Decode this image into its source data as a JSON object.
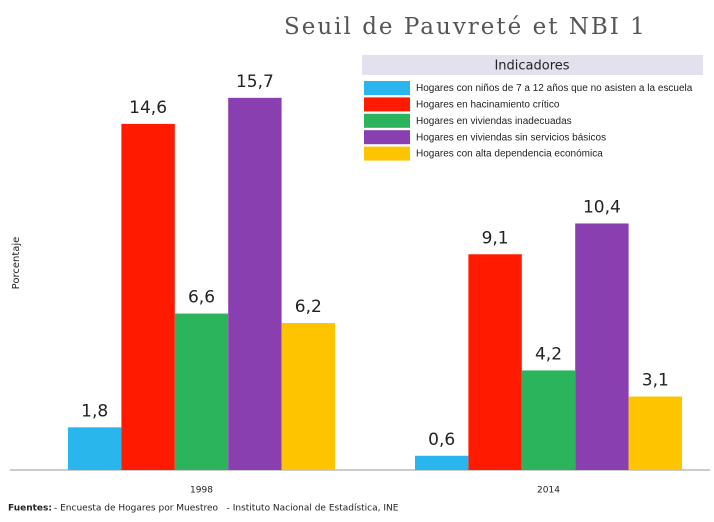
{
  "chart_data": {
    "type": "bar",
    "title": "Seuil de Pauvreté et NBI 1",
    "y_label": "Porcentaje",
    "legend_title": "Indicadores",
    "source_label": "Fuentes:",
    "source": "- Encuesta de Hogares por Muestreo   - Instituto Nacional de Estadística, INE",
    "categories": [
      "1998",
      "2014"
    ],
    "ylim": [
      0,
      17
    ],
    "series": [
      {
        "name": "Hogares con niños de 7 a 12 años que no asisten a la escuela",
        "color": "#29b6ec",
        "values": [
          1.8,
          0.6
        ],
        "value_labels": [
          "1,8",
          "0,6"
        ]
      },
      {
        "name": "Hogares en hacinamiento crítico",
        "color": "#ff1a00",
        "values": [
          14.6,
          9.1
        ],
        "value_labels": [
          "14,6",
          "9,1"
        ]
      },
      {
        "name": "Hogares en viviendas inadecuadas",
        "color": "#2bb45c",
        "values": [
          6.6,
          4.2
        ],
        "value_labels": [
          "6,6",
          "4,2"
        ]
      },
      {
        "name": "Hogares en viviendas sin servicios básicos",
        "color": "#8a3fb0",
        "values": [
          15.7,
          10.4
        ],
        "value_labels": [
          "15,7",
          "10,4"
        ]
      },
      {
        "name": "Hogares con alta dependencia económica",
        "color": "#ffc400",
        "values": [
          6.2,
          3.1
        ],
        "value_labels": [
          "6,2",
          "3,1"
        ]
      }
    ]
  }
}
